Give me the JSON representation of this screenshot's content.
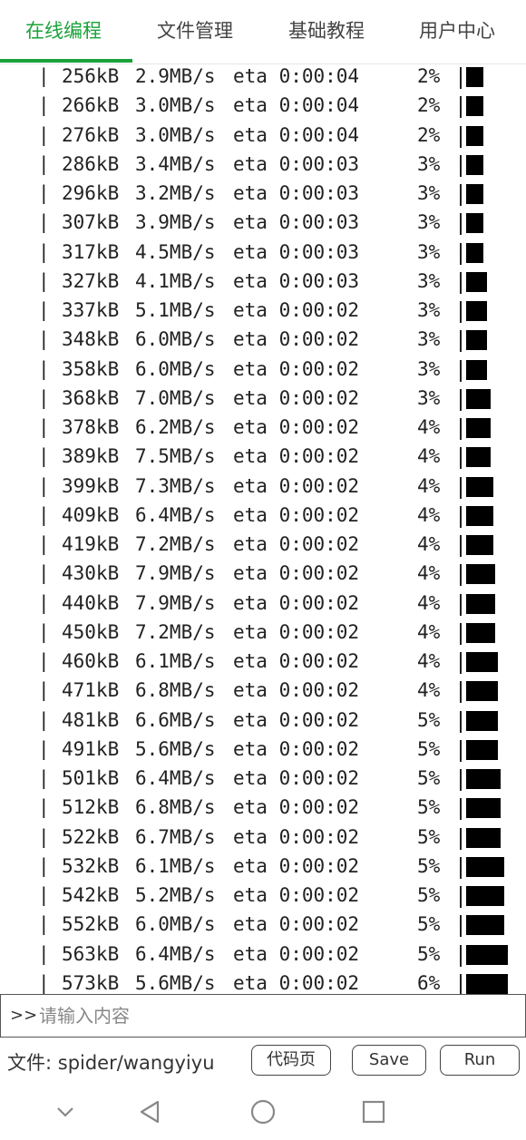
{
  "tabs": [
    {
      "label": "在线编程"
    },
    {
      "label": "文件管理"
    },
    {
      "label": "基础教程"
    },
    {
      "label": "用户中心"
    }
  ],
  "console": {
    "rows": [
      {
        "size": "256kB",
        "speed": "2.9MB/s",
        "eta": "eta 0:00:04",
        "pct": "2%",
        "blocks": 1
      },
      {
        "size": "266kB",
        "speed": "3.0MB/s",
        "eta": "eta 0:00:04",
        "pct": "2%",
        "blocks": 1
      },
      {
        "size": "276kB",
        "speed": "3.0MB/s",
        "eta": "eta 0:00:04",
        "pct": "2%",
        "blocks": 1
      },
      {
        "size": "286kB",
        "speed": "3.4MB/s",
        "eta": "eta 0:00:03",
        "pct": "3%",
        "blocks": 1
      },
      {
        "size": "296kB",
        "speed": "3.2MB/s",
        "eta": "eta 0:00:03",
        "pct": "3%",
        "blocks": 1
      },
      {
        "size": "307kB",
        "speed": "3.9MB/s",
        "eta": "eta 0:00:03",
        "pct": "3%",
        "blocks": 1
      },
      {
        "size": "317kB",
        "speed": "4.5MB/s",
        "eta": "eta 0:00:03",
        "pct": "3%",
        "blocks": 1
      },
      {
        "size": "327kB",
        "speed": "4.1MB/s",
        "eta": "eta 0:00:03",
        "pct": "3%",
        "blocks": 1.2
      },
      {
        "size": "337kB",
        "speed": "5.1MB/s",
        "eta": "eta 0:00:02",
        "pct": "3%",
        "blocks": 1.2
      },
      {
        "size": "348kB",
        "speed": "6.0MB/s",
        "eta": "eta 0:00:02",
        "pct": "3%",
        "blocks": 1.2
      },
      {
        "size": "358kB",
        "speed": "6.0MB/s",
        "eta": "eta 0:00:02",
        "pct": "3%",
        "blocks": 1.2
      },
      {
        "size": "368kB",
        "speed": "7.0MB/s",
        "eta": "eta 0:00:02",
        "pct": "3%",
        "blocks": 1.4
      },
      {
        "size": "378kB",
        "speed": "6.2MB/s",
        "eta": "eta 0:00:02",
        "pct": "4%",
        "blocks": 1.4
      },
      {
        "size": "389kB",
        "speed": "7.5MB/s",
        "eta": "eta 0:00:02",
        "pct": "4%",
        "blocks": 1.4
      },
      {
        "size": "399kB",
        "speed": "7.3MB/s",
        "eta": "eta 0:00:02",
        "pct": "4%",
        "blocks": 1.6
      },
      {
        "size": "409kB",
        "speed": "6.4MB/s",
        "eta": "eta 0:00:02",
        "pct": "4%",
        "blocks": 1.6
      },
      {
        "size": "419kB",
        "speed": "7.2MB/s",
        "eta": "eta 0:00:02",
        "pct": "4%",
        "blocks": 1.6
      },
      {
        "size": "430kB",
        "speed": "7.9MB/s",
        "eta": "eta 0:00:02",
        "pct": "4%",
        "blocks": 1.7
      },
      {
        "size": "440kB",
        "speed": "7.9MB/s",
        "eta": "eta 0:00:02",
        "pct": "4%",
        "blocks": 1.7
      },
      {
        "size": "450kB",
        "speed": "7.2MB/s",
        "eta": "eta 0:00:02",
        "pct": "4%",
        "blocks": 1.7
      },
      {
        "size": "460kB",
        "speed": "6.1MB/s",
        "eta": "eta 0:00:02",
        "pct": "4%",
        "blocks": 1.85
      },
      {
        "size": "471kB",
        "speed": "6.8MB/s",
        "eta": "eta 0:00:02",
        "pct": "4%",
        "blocks": 1.85
      },
      {
        "size": "481kB",
        "speed": "6.6MB/s",
        "eta": "eta 0:00:02",
        "pct": "5%",
        "blocks": 1.85
      },
      {
        "size": "491kB",
        "speed": "5.6MB/s",
        "eta": "eta 0:00:02",
        "pct": "5%",
        "blocks": 1.85
      },
      {
        "size": "501kB",
        "speed": "6.4MB/s",
        "eta": "eta 0:00:02",
        "pct": "5%",
        "blocks": 2
      },
      {
        "size": "512kB",
        "speed": "6.8MB/s",
        "eta": "eta 0:00:02",
        "pct": "5%",
        "blocks": 2
      },
      {
        "size": "522kB",
        "speed": "6.7MB/s",
        "eta": "eta 0:00:02",
        "pct": "5%",
        "blocks": 2
      },
      {
        "size": "532kB",
        "speed": "6.1MB/s",
        "eta": "eta 0:00:02",
        "pct": "5%",
        "blocks": 2.2
      },
      {
        "size": "542kB",
        "speed": "5.2MB/s",
        "eta": "eta 0:00:02",
        "pct": "5%",
        "blocks": 2.2
      },
      {
        "size": "552kB",
        "speed": "6.0MB/s",
        "eta": "eta 0:00:02",
        "pct": "5%",
        "blocks": 2.2
      },
      {
        "size": "563kB",
        "speed": "6.4MB/s",
        "eta": "eta 0:00:02",
        "pct": "5%",
        "blocks": 2.4
      },
      {
        "size": "573kB",
        "speed": "5.6MB/s",
        "eta": "eta 0:00:02",
        "pct": "6%",
        "blocks": 2.4
      }
    ]
  },
  "input": {
    "prompt": ">>",
    "placeholder": "请输入内容"
  },
  "footer": {
    "file_label": "文件: spider/wangyiyu",
    "code_button": "代码页",
    "save_button": "Save",
    "run_button": "Run"
  },
  "colors": {
    "accent": "#1aa23a"
  },
  "navbar": {
    "icons": [
      "chevron-down-icon",
      "back-triangle-icon",
      "home-circle-icon",
      "recents-square-icon"
    ]
  }
}
